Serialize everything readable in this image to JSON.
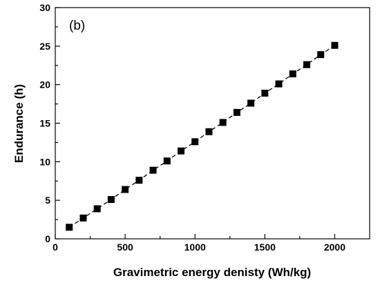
{
  "chart_data": {
    "type": "line",
    "panel_label": "(b)",
    "title": "",
    "xlabel": "Gravimetric energy denisty (Wh/kg)",
    "ylabel": "Endurance (h)",
    "xlim": [
      0,
      2250
    ],
    "ylim": [
      0,
      30
    ],
    "xticks": [
      0,
      500,
      1000,
      1500,
      2000
    ],
    "yticks": [
      0,
      5,
      10,
      15,
      20,
      25,
      30
    ],
    "grid": false,
    "legend": "none",
    "series": [
      {
        "marker": "square",
        "line_style": "dashed",
        "color": "#000000",
        "x": [
          100,
          200,
          300,
          400,
          500,
          600,
          700,
          800,
          900,
          1000,
          1100,
          1200,
          1300,
          1400,
          1500,
          1600,
          1700,
          1800,
          1900,
          2000
        ],
        "y": [
          1.5,
          2.7,
          3.9,
          5.1,
          6.4,
          7.6,
          8.9,
          10.1,
          11.4,
          12.6,
          13.9,
          15.1,
          16.4,
          17.6,
          18.9,
          20.1,
          21.4,
          22.6,
          23.9,
          25.1
        ]
      }
    ]
  }
}
